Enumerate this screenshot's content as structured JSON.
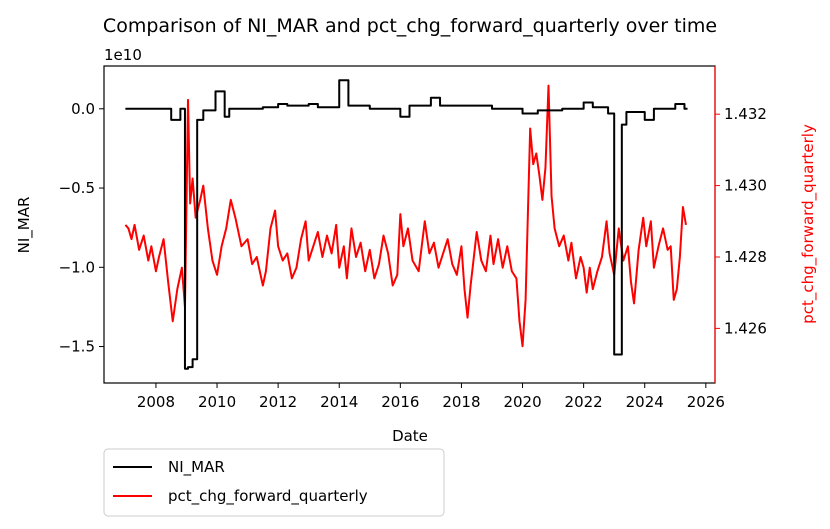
{
  "chart_data": {
    "type": "line",
    "title": "Comparison of NI_MAR and pct_chg_forward_quarterly over time",
    "xlabel": "Date",
    "ylabel_left": "NI_MAR",
    "ylabel_right": "pct_chg_forward_quarterly",
    "left_axis_offset_text": "1e10",
    "colors": {
      "left_axis": "#000000",
      "right_axis": "#ff0000"
    },
    "x_ticks": [
      "2008",
      "2010",
      "2012",
      "2014",
      "2016",
      "2018",
      "2020",
      "2022",
      "2024",
      "2026"
    ],
    "x_tick_values": [
      2008,
      2010,
      2012,
      2014,
      2016,
      2018,
      2020,
      2022,
      2024,
      2026
    ],
    "left_ticks": [
      "0.0",
      "−0.5",
      "−1.0",
      "−1.5"
    ],
    "left_tick_values": [
      0.0,
      -0.5,
      -1.0,
      -1.5
    ],
    "right_ticks": [
      "1.432",
      "1.430",
      "1.428",
      "1.426"
    ],
    "right_tick_values": [
      1.432,
      1.43,
      1.428,
      1.426
    ],
    "xlim": [
      2006.3,
      2026.3
    ],
    "ylim_left": [
      -1.73,
      0.27
    ],
    "ylim_right": [
      1.42447,
      1.43335
    ],
    "legend": {
      "position": "below-left",
      "entries": [
        "NI_MAR",
        "pct_chg_forward_quarterly"
      ]
    },
    "series": [
      {
        "name": "NI_MAR",
        "axis": "left",
        "color": "#000000",
        "step": true,
        "points": [
          [
            2007.0,
            0.0
          ],
          [
            2008.5,
            -0.07
          ],
          [
            2008.8,
            0.0
          ],
          [
            2008.95,
            -1.64
          ],
          [
            2009.05,
            -1.63
          ],
          [
            2009.2,
            -1.58
          ],
          [
            2009.35,
            -0.07
          ],
          [
            2009.55,
            -0.01
          ],
          [
            2009.95,
            0.11
          ],
          [
            2010.25,
            -0.05
          ],
          [
            2010.4,
            0.0
          ],
          [
            2011.5,
            0.01
          ],
          [
            2012.0,
            0.03
          ],
          [
            2012.3,
            0.02
          ],
          [
            2013.0,
            0.03
          ],
          [
            2013.3,
            0.01
          ],
          [
            2014.0,
            0.18
          ],
          [
            2014.3,
            0.02
          ],
          [
            2015.0,
            0.0
          ],
          [
            2016.0,
            -0.05
          ],
          [
            2016.3,
            0.02
          ],
          [
            2017.0,
            0.07
          ],
          [
            2017.3,
            0.02
          ],
          [
            2019.0,
            0.0
          ],
          [
            2020.0,
            -0.03
          ],
          [
            2020.5,
            -0.01
          ],
          [
            2021.3,
            0.0
          ],
          [
            2022.0,
            0.04
          ],
          [
            2022.3,
            0.01
          ],
          [
            2022.8,
            -0.03
          ],
          [
            2023.0,
            -1.55
          ],
          [
            2023.25,
            -0.1
          ],
          [
            2023.4,
            -0.02
          ],
          [
            2024.0,
            -0.07
          ],
          [
            2024.3,
            0.0
          ],
          [
            2025.0,
            0.03
          ],
          [
            2025.3,
            0.0
          ],
          [
            2025.4,
            0.0
          ]
        ]
      },
      {
        "name": "pct_chg_forward_quarterly",
        "axis": "right",
        "color": "#ff0000",
        "step": false,
        "points": [
          [
            2007.0,
            1.4289
          ],
          [
            2007.1,
            1.4288
          ],
          [
            2007.2,
            1.4285
          ],
          [
            2007.3,
            1.4289
          ],
          [
            2007.45,
            1.4282
          ],
          [
            2007.6,
            1.4286
          ],
          [
            2007.75,
            1.4279
          ],
          [
            2007.85,
            1.4283
          ],
          [
            2008.0,
            1.4276
          ],
          [
            2008.1,
            1.428
          ],
          [
            2008.25,
            1.4285
          ],
          [
            2008.4,
            1.4273
          ],
          [
            2008.55,
            1.4262
          ],
          [
            2008.7,
            1.4271
          ],
          [
            2008.85,
            1.4277
          ],
          [
            2008.95,
            1.4266
          ],
          [
            2009.05,
            1.4324
          ],
          [
            2009.12,
            1.4295
          ],
          [
            2009.2,
            1.4302
          ],
          [
            2009.3,
            1.4291
          ],
          [
            2009.45,
            1.4296
          ],
          [
            2009.55,
            1.43
          ],
          [
            2009.7,
            1.4288
          ],
          [
            2009.85,
            1.4279
          ],
          [
            2010.0,
            1.4275
          ],
          [
            2010.15,
            1.4283
          ],
          [
            2010.3,
            1.4288
          ],
          [
            2010.45,
            1.4296
          ],
          [
            2010.6,
            1.4291
          ],
          [
            2010.8,
            1.4283
          ],
          [
            2011.0,
            1.4285
          ],
          [
            2011.15,
            1.4278
          ],
          [
            2011.3,
            1.428
          ],
          [
            2011.5,
            1.4272
          ],
          [
            2011.6,
            1.4276
          ],
          [
            2011.75,
            1.4288
          ],
          [
            2011.9,
            1.4293
          ],
          [
            2012.0,
            1.4283
          ],
          [
            2012.15,
            1.4279
          ],
          [
            2012.3,
            1.4281
          ],
          [
            2012.45,
            1.4274
          ],
          [
            2012.6,
            1.4277
          ],
          [
            2012.75,
            1.4285
          ],
          [
            2012.9,
            1.429
          ],
          [
            2013.0,
            1.4279
          ],
          [
            2013.15,
            1.4283
          ],
          [
            2013.3,
            1.4287
          ],
          [
            2013.45,
            1.428
          ],
          [
            2013.6,
            1.4286
          ],
          [
            2013.75,
            1.4281
          ],
          [
            2013.9,
            1.4289
          ],
          [
            2014.0,
            1.4277
          ],
          [
            2014.15,
            1.4283
          ],
          [
            2014.25,
            1.4274
          ],
          [
            2014.4,
            1.4288
          ],
          [
            2014.55,
            1.428
          ],
          [
            2014.7,
            1.4284
          ],
          [
            2014.85,
            1.4276
          ],
          [
            2015.0,
            1.4282
          ],
          [
            2015.15,
            1.4274
          ],
          [
            2015.3,
            1.4278
          ],
          [
            2015.45,
            1.4286
          ],
          [
            2015.6,
            1.4281
          ],
          [
            2015.75,
            1.4272
          ],
          [
            2015.9,
            1.4275
          ],
          [
            2016.0,
            1.4292
          ],
          [
            2016.1,
            1.4283
          ],
          [
            2016.25,
            1.4288
          ],
          [
            2016.4,
            1.4279
          ],
          [
            2016.6,
            1.4276
          ],
          [
            2016.8,
            1.429
          ],
          [
            2016.95,
            1.4281
          ],
          [
            2017.1,
            1.4284
          ],
          [
            2017.25,
            1.4277
          ],
          [
            2017.4,
            1.4281
          ],
          [
            2017.55,
            1.4285
          ],
          [
            2017.7,
            1.4278
          ],
          [
            2017.85,
            1.4275
          ],
          [
            2018.0,
            1.4283
          ],
          [
            2018.1,
            1.4271
          ],
          [
            2018.2,
            1.4263
          ],
          [
            2018.3,
            1.4272
          ],
          [
            2018.5,
            1.4287
          ],
          [
            2018.65,
            1.4279
          ],
          [
            2018.8,
            1.4276
          ],
          [
            2018.95,
            1.4286
          ],
          [
            2019.05,
            1.4278
          ],
          [
            2019.2,
            1.4285
          ],
          [
            2019.35,
            1.4277
          ],
          [
            2019.5,
            1.4283
          ],
          [
            2019.65,
            1.4276
          ],
          [
            2019.8,
            1.4274
          ],
          [
            2019.9,
            1.4262
          ],
          [
            2020.0,
            1.4255
          ],
          [
            2020.1,
            1.4268
          ],
          [
            2020.25,
            1.4316
          ],
          [
            2020.35,
            1.4306
          ],
          [
            2020.45,
            1.4309
          ],
          [
            2020.55,
            1.4303
          ],
          [
            2020.65,
            1.4296
          ],
          [
            2020.75,
            1.4305
          ],
          [
            2020.85,
            1.4328
          ],
          [
            2020.95,
            1.4297
          ],
          [
            2021.05,
            1.4288
          ],
          [
            2021.2,
            1.4283
          ],
          [
            2021.35,
            1.4286
          ],
          [
            2021.5,
            1.4279
          ],
          [
            2021.6,
            1.4284
          ],
          [
            2021.75,
            1.4274
          ],
          [
            2021.9,
            1.428
          ],
          [
            2022.0,
            1.4277
          ],
          [
            2022.1,
            1.427
          ],
          [
            2022.2,
            1.4277
          ],
          [
            2022.3,
            1.4271
          ],
          [
            2022.45,
            1.4276
          ],
          [
            2022.6,
            1.428
          ],
          [
            2022.75,
            1.429
          ],
          [
            2022.85,
            1.4281
          ],
          [
            2023.0,
            1.4275
          ],
          [
            2023.15,
            1.4288
          ],
          [
            2023.3,
            1.4279
          ],
          [
            2023.45,
            1.4283
          ],
          [
            2023.55,
            1.4273
          ],
          [
            2023.65,
            1.4267
          ],
          [
            2023.8,
            1.4282
          ],
          [
            2023.95,
            1.4291
          ],
          [
            2024.05,
            1.4283
          ],
          [
            2024.2,
            1.429
          ],
          [
            2024.3,
            1.4277
          ],
          [
            2024.45,
            1.4283
          ],
          [
            2024.6,
            1.4288
          ],
          [
            2024.75,
            1.4282
          ],
          [
            2024.85,
            1.4283
          ],
          [
            2024.95,
            1.4268
          ],
          [
            2025.05,
            1.4271
          ],
          [
            2025.15,
            1.428
          ],
          [
            2025.25,
            1.4294
          ],
          [
            2025.35,
            1.4289
          ]
        ]
      }
    ]
  }
}
